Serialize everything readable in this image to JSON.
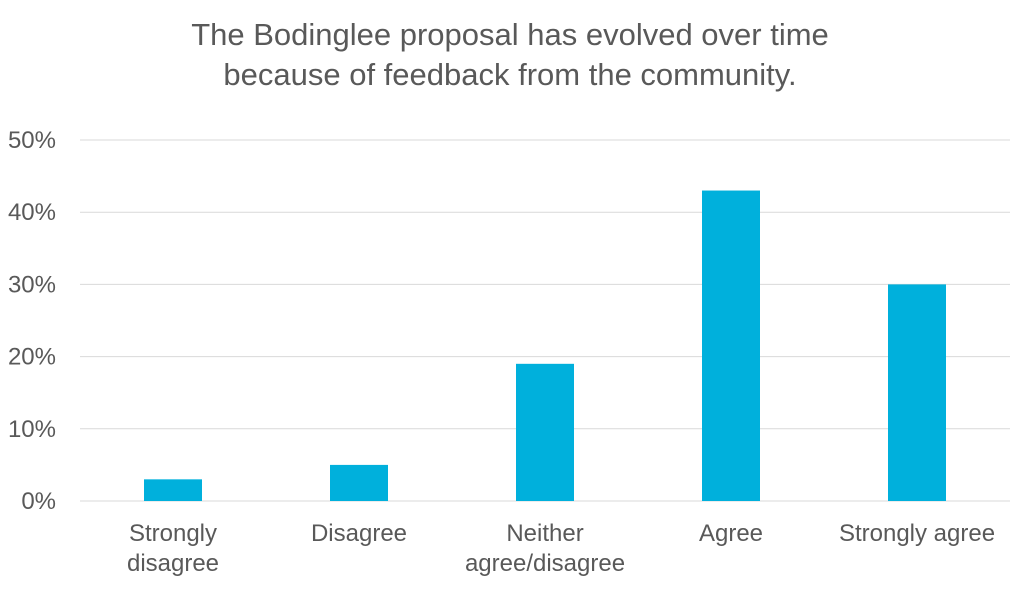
{
  "chart_data": {
    "type": "bar",
    "title_lines": [
      "The Bodinglee proposal has evolved over time",
      "because of feedback from the community."
    ],
    "categories": [
      [
        "Strongly",
        "disagree"
      ],
      [
        "Disagree"
      ],
      [
        "Neither",
        "agree/disagree"
      ],
      [
        "Agree"
      ],
      [
        "Strongly agree"
      ]
    ],
    "values": [
      3,
      5,
      19,
      43,
      30
    ],
    "y_ticks": [
      "0%",
      "10%",
      "20%",
      "30%",
      "40%",
      "50%"
    ],
    "ylim": [
      0,
      50
    ],
    "ytick_step": 10,
    "grid": true,
    "legend": "none",
    "bar_color": "#00B0DC",
    "xlabel": "",
    "ylabel": ""
  }
}
